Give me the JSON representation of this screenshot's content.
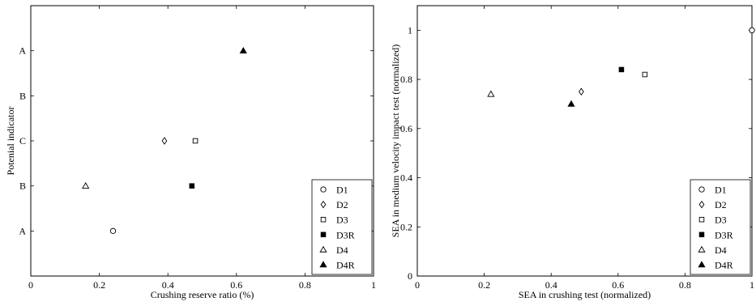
{
  "chart_data": [
    {
      "type": "scatter",
      "xlabel": "Crushing reserve ratio (%)",
      "ylabel": "Potenial indicator",
      "xlim": [
        0,
        1
      ],
      "xticks": [
        "0",
        "0.2",
        "0.4",
        "0.6",
        "0.8",
        "1"
      ],
      "ycategories": [
        "A",
        "B",
        "C",
        "B",
        "A"
      ],
      "grid": false,
      "legend_position": "bottom-right",
      "series": [
        {
          "name": "D1",
          "marker": "circle-open",
          "x": 0.24,
          "level": 1
        },
        {
          "name": "D2",
          "marker": "diamond-open",
          "x": 0.39,
          "level": 3
        },
        {
          "name": "D3",
          "marker": "square-open",
          "x": 0.48,
          "level": 3
        },
        {
          "name": "D3R",
          "marker": "square-filled",
          "x": 0.47,
          "level": 2
        },
        {
          "name": "D4",
          "marker": "triangle-open",
          "x": 0.16,
          "level": 2
        },
        {
          "name": "D4R",
          "marker": "triangle-filled",
          "x": 0.62,
          "level": 5
        }
      ]
    },
    {
      "type": "scatter",
      "xlabel": "SEA in crushing test (normalized)",
      "ylabel": "SEA in medium velocity impact test (normalized)",
      "xlim": [
        0,
        1
      ],
      "ylim": [
        0,
        1.1
      ],
      "xticks": [
        "0",
        "0.2",
        "0.4",
        "0.6",
        "0.8",
        "1"
      ],
      "yticks": [
        "0",
        "0.2",
        "0.4",
        "0.6",
        "0.8",
        "1"
      ],
      "grid": false,
      "legend_position": "bottom-right",
      "series": [
        {
          "name": "D1",
          "marker": "circle-open",
          "x": 1.0,
          "y": 1.0
        },
        {
          "name": "D2",
          "marker": "diamond-open",
          "x": 0.49,
          "y": 0.75
        },
        {
          "name": "D3",
          "marker": "square-open",
          "x": 0.68,
          "y": 0.82
        },
        {
          "name": "D3R",
          "marker": "square-filled",
          "x": 0.61,
          "y": 0.84
        },
        {
          "name": "D4",
          "marker": "triangle-open",
          "x": 0.22,
          "y": 0.74
        },
        {
          "name": "D4R",
          "marker": "triangle-filled",
          "x": 0.46,
          "y": 0.7
        }
      ]
    }
  ]
}
